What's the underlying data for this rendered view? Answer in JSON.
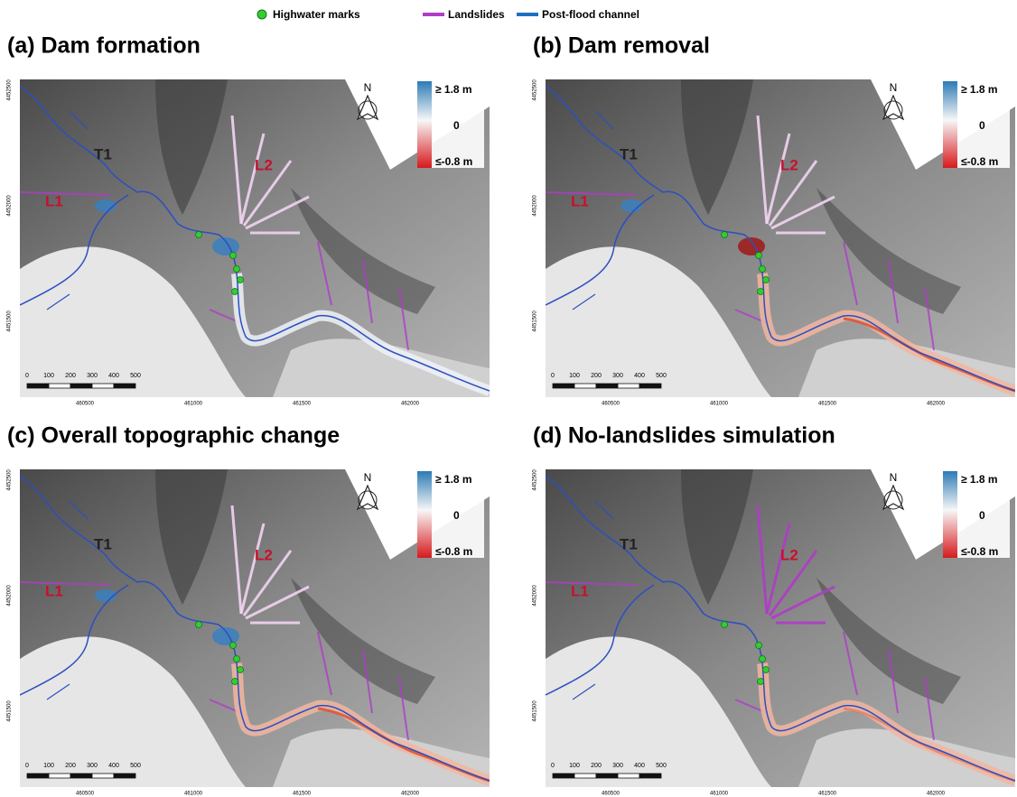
{
  "legend": {
    "items": [
      "Highwater marks",
      "Landslides",
      "Post-flood channel"
    ]
  },
  "panels": [
    {
      "title": "(a) Dam formation"
    },
    {
      "title": "(b) Dam removal"
    },
    {
      "title": "(c) Overall topographic change"
    },
    {
      "title": "(d) No-landslides simulation"
    }
  ],
  "colorbar": {
    "top": "≥ 1.8 m",
    "middle": "0",
    "bottom": "≤-0.8 m"
  },
  "north": "N",
  "map_labels": [
    "T1",
    "L1",
    "L2"
  ],
  "scale_bar": [
    "0",
    "100",
    "200",
    "300",
    "400",
    "500"
  ],
  "x_ticks": [
    "460500",
    "461000",
    "461500",
    "462000"
  ],
  "y_ticks": [
    "4452500",
    "4452000",
    "4451500"
  ]
}
